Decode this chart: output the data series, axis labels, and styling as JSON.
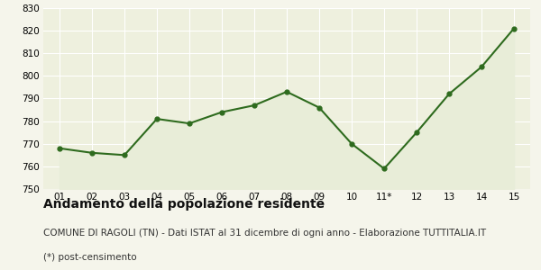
{
  "x_labels": [
    "01",
    "02",
    "03",
    "04",
    "05",
    "06",
    "07",
    "08",
    "09",
    "10",
    "11*",
    "12",
    "13",
    "14",
    "15"
  ],
  "x_values": [
    1,
    2,
    3,
    4,
    5,
    6,
    7,
    8,
    9,
    10,
    11,
    12,
    13,
    14,
    15
  ],
  "y_values": [
    768,
    766,
    765,
    781,
    779,
    784,
    787,
    793,
    786,
    770,
    759,
    775,
    792,
    804,
    821
  ],
  "ylim": [
    750,
    830
  ],
  "yticks": [
    750,
    760,
    770,
    780,
    790,
    800,
    810,
    820,
    830
  ],
  "line_color": "#2e6b1e",
  "fill_color": "#e8edd8",
  "marker": "o",
  "marker_size": 3.5,
  "line_width": 1.5,
  "bg_color": "#f5f5eb",
  "plot_bg_color": "#eef0de",
  "grid_color": "#ffffff",
  "title": "Andamento della popolazione residente",
  "subtitle": "COMUNE DI RAGOLI (TN) - Dati ISTAT al 31 dicembre di ogni anno - Elaborazione TUTTITALIA.IT",
  "footnote": "(*) post-censimento",
  "title_fontsize": 10,
  "subtitle_fontsize": 7.5,
  "footnote_fontsize": 7.5,
  "tick_fontsize": 7.5
}
